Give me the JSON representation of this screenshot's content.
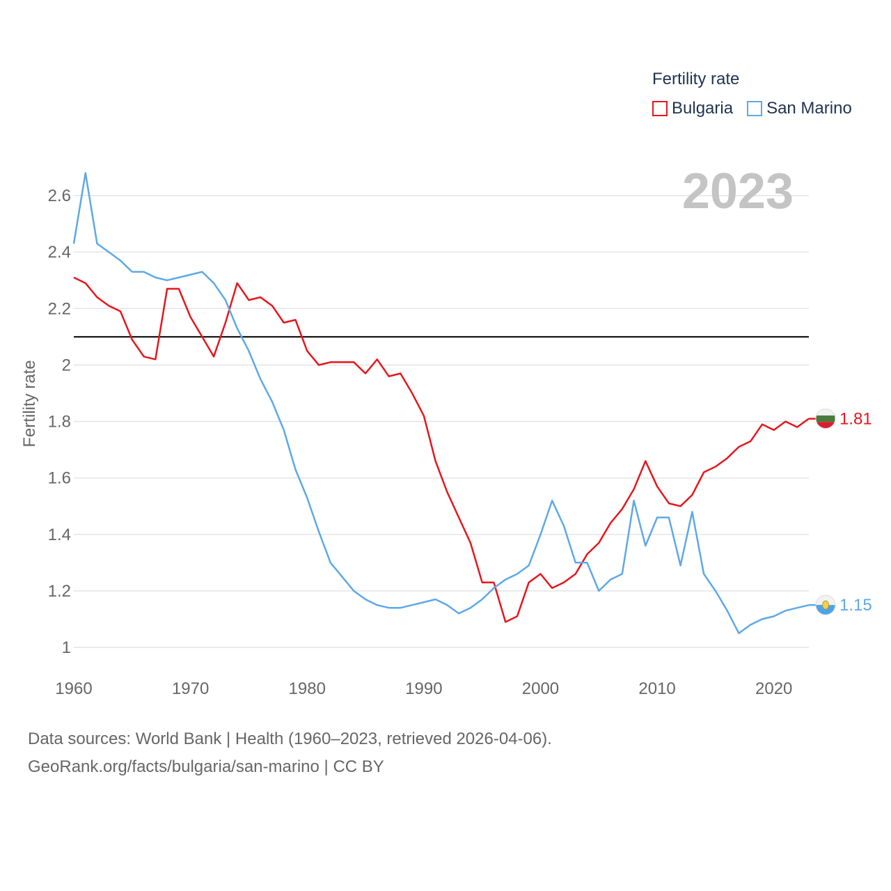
{
  "legend": {
    "title": "Fertility rate"
  },
  "footer": {
    "line1": "Data sources: World Bank | Health (1960–2023, retrieved 2026-04-06).",
    "line2": "GeoRank.org/facts/bulgaria/san-marino | CC BY"
  },
  "chart_data": {
    "type": "line",
    "title": "2023",
    "xlabel": "",
    "ylabel": "Fertility rate",
    "xlim": [
      1960,
      2023
    ],
    "ylim": [
      1,
      2.7
    ],
    "x_ticks": [
      1960,
      1970,
      1980,
      1990,
      2000,
      2010,
      2020
    ],
    "y_ticks": [
      1,
      1.2,
      1.4,
      1.6,
      1.8,
      2,
      2.2,
      2.4,
      2.6
    ],
    "y_tick_labels": [
      "1",
      "1.2",
      "1.4",
      "1.6",
      "1.8",
      "2",
      "2.2",
      "2.4",
      "2.6"
    ],
    "reference_line": {
      "y": 2.1,
      "color": "#000000"
    },
    "x": [
      1960,
      1961,
      1962,
      1963,
      1964,
      1965,
      1966,
      1967,
      1968,
      1969,
      1970,
      1971,
      1972,
      1973,
      1974,
      1975,
      1976,
      1977,
      1978,
      1979,
      1980,
      1981,
      1982,
      1983,
      1984,
      1985,
      1986,
      1987,
      1988,
      1989,
      1990,
      1991,
      1992,
      1993,
      1994,
      1995,
      1996,
      1997,
      1998,
      1999,
      2000,
      2001,
      2002,
      2003,
      2004,
      2005,
      2006,
      2007,
      2008,
      2009,
      2010,
      2011,
      2012,
      2013,
      2014,
      2015,
      2016,
      2017,
      2018,
      2019,
      2020,
      2021,
      2022,
      2023
    ],
    "series": [
      {
        "name": "Bulgaria",
        "color": "#e8151b",
        "end_label": "1.81",
        "values": [
          2.31,
          2.29,
          2.24,
          2.21,
          2.19,
          2.09,
          2.03,
          2.02,
          2.27,
          2.27,
          2.17,
          2.1,
          2.03,
          2.15,
          2.29,
          2.23,
          2.24,
          2.21,
          2.15,
          2.16,
          2.05,
          2.0,
          2.01,
          2.01,
          2.01,
          1.97,
          2.02,
          1.96,
          1.97,
          1.9,
          1.82,
          1.66,
          1.55,
          1.46,
          1.37,
          1.23,
          1.23,
          1.09,
          1.11,
          1.23,
          1.26,
          1.21,
          1.23,
          1.26,
          1.33,
          1.37,
          1.44,
          1.49,
          1.56,
          1.66,
          1.57,
          1.51,
          1.5,
          1.54,
          1.62,
          1.64,
          1.67,
          1.71,
          1.73,
          1.79,
          1.77,
          1.8,
          1.78,
          1.81
        ]
      },
      {
        "name": "San Marino",
        "color": "#5da8e8",
        "end_label": "1.15",
        "values": [
          2.43,
          2.68,
          2.43,
          2.4,
          2.37,
          2.33,
          2.33,
          2.31,
          2.3,
          2.31,
          2.32,
          2.33,
          2.29,
          2.23,
          2.13,
          2.05,
          1.95,
          1.87,
          1.77,
          1.63,
          1.53,
          1.41,
          1.3,
          1.25,
          1.2,
          1.17,
          1.15,
          1.14,
          1.14,
          1.15,
          1.16,
          1.17,
          1.15,
          1.12,
          1.14,
          1.17,
          1.21,
          1.24,
          1.26,
          1.29,
          1.4,
          1.52,
          1.43,
          1.3,
          1.3,
          1.2,
          1.24,
          1.26,
          1.52,
          1.36,
          1.46,
          1.46,
          1.29,
          1.48,
          1.26,
          1.2,
          1.13,
          1.05,
          1.08,
          1.1,
          1.11,
          1.13,
          1.14,
          1.15
        ]
      }
    ]
  }
}
